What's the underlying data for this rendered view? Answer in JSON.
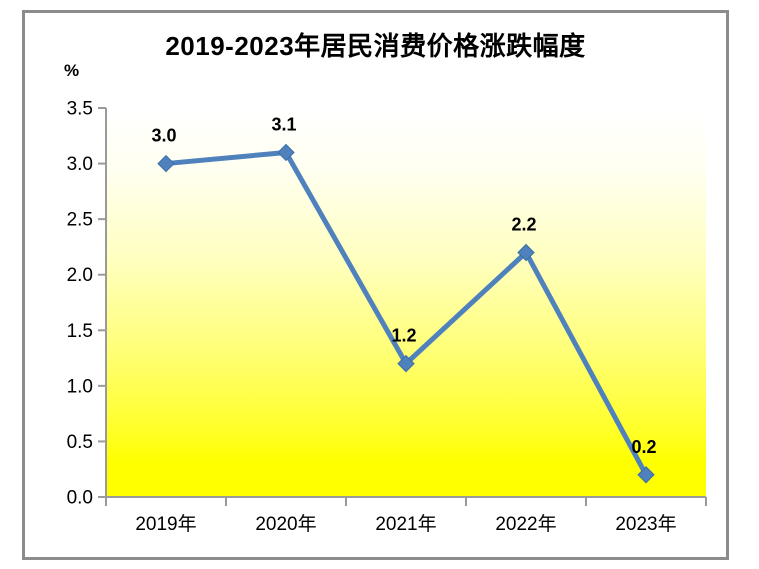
{
  "chart_data": {
    "type": "line",
    "title": "2019-2023年居民消费价格涨跌幅度",
    "unit": "%",
    "categories": [
      "2019年",
      "2020年",
      "2021年",
      "2022年",
      "2023年"
    ],
    "series": [
      {
        "name": "居民消费价格涨跌幅度",
        "values": [
          3.0,
          3.1,
          1.2,
          2.2,
          0.2
        ],
        "point_labels": [
          "3.0",
          "3.1",
          "1.2",
          "2.2",
          "0.2"
        ]
      }
    ],
    "xlabel": "",
    "ylabel": "%",
    "ylim": [
      0.0,
      3.5
    ],
    "ytick_step": 0.5,
    "ytick_labels": [
      "0.0",
      "0.5",
      "1.0",
      "1.5",
      "2.0",
      "2.5",
      "3.0",
      "3.5"
    ],
    "grid": false,
    "legend": false,
    "marker": "diamond",
    "colors": {
      "line": "#4F81BD",
      "marker": "#4F81BD",
      "marker_edge": "#3A6EA5",
      "axis": "#9a9a9a",
      "tick_text": "#000000",
      "data_label_text": "#000000",
      "frame_border": "#8c8c8c",
      "background": "#ffffff"
    },
    "plot_gradient_stops": [
      [
        0.0,
        "#FFFFFF"
      ],
      [
        0.15,
        "#FFFFF2"
      ],
      [
        0.39,
        "#FFFFC0"
      ],
      [
        0.62,
        "#FFFF78"
      ],
      [
        0.83,
        "#FFFF28"
      ],
      [
        0.91,
        "#FFFF00"
      ],
      [
        1.0,
        "#FFFF00"
      ]
    ]
  }
}
